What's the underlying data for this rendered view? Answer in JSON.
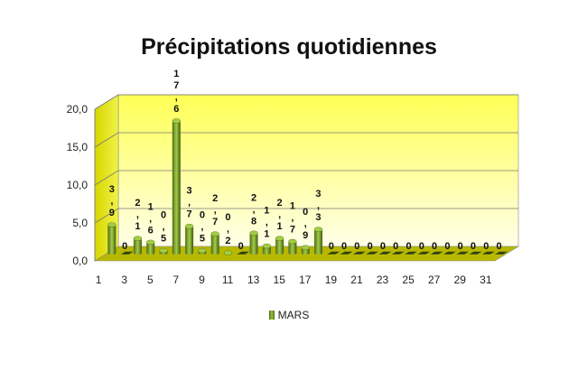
{
  "chart_data": {
    "type": "bar",
    "title": "Précipitations quotidiennes",
    "xlabel": "",
    "ylabel": "",
    "ylim": [
      0,
      20
    ],
    "yticks": [
      "0,0",
      "5,0",
      "10,0",
      "15,0",
      "20,0"
    ],
    "grid": true,
    "legend_position": "bottom",
    "categories": [
      "1",
      "2",
      "3",
      "4",
      "5",
      "6",
      "7",
      "8",
      "9",
      "10",
      "11",
      "12",
      "13",
      "14",
      "15",
      "16",
      "17",
      "18",
      "19",
      "20",
      "21",
      "22",
      "23",
      "24",
      "25",
      "26",
      "27",
      "28",
      "29",
      "30",
      "31"
    ],
    "x_tick_labels": [
      "1",
      "3",
      "5",
      "7",
      "9",
      "11",
      "13",
      "15",
      "17",
      "19",
      "21",
      "23",
      "25",
      "27",
      "29",
      "31"
    ],
    "series": [
      {
        "name": "MARS",
        "values": [
          3.9,
          0,
          2.1,
          1.6,
          0.5,
          17.6,
          3.7,
          0.5,
          2.7,
          0.2,
          0,
          2.8,
          1.1,
          2.1,
          1.7,
          0.9,
          3.3,
          0,
          0,
          0,
          0,
          0,
          0,
          0,
          0,
          0,
          0,
          0,
          0,
          0,
          0
        ],
        "data_labels": [
          "3,9",
          "0",
          "2,1",
          "1,6",
          "0,5",
          "17,6",
          "3,7",
          "0,5",
          "2,7",
          "0,2",
          "0",
          "2,8",
          "1,1",
          "2,1",
          "1,7",
          "0,9",
          "3,3",
          "0",
          "0",
          "0",
          "0",
          "0",
          "0",
          "0",
          "0",
          "0",
          "0",
          "0",
          "0",
          "0",
          "0"
        ],
        "color": "#7a9a2a"
      }
    ],
    "colors": {
      "wall_top": "#ffff66",
      "wall_bottom": "#ffffe0",
      "floor": "#b8b800",
      "bar_dark": "#4d6b1a",
      "bar_light": "#a4cc44"
    }
  }
}
